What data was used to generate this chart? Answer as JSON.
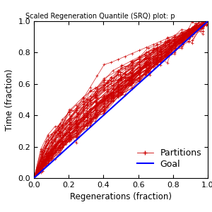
{
  "title": "Scaled Regeneration Quantile (SRQ) plot: p",
  "xlabel": "Regenerations (fraction)",
  "ylabel": "Time (fraction)",
  "xlim": [
    0,
    1
  ],
  "ylim": [
    0,
    1
  ],
  "xticks": [
    0,
    0.2,
    0.4,
    0.6,
    0.8,
    1
  ],
  "yticks": [
    0,
    0.2,
    0.4,
    0.6,
    0.8,
    1
  ],
  "goal_color": "#0000ff",
  "partition_color": "#cc0000",
  "legend_partitions": "Partitions",
  "legend_goal": "Goal",
  "num_partitions": 60,
  "seed": 7
}
